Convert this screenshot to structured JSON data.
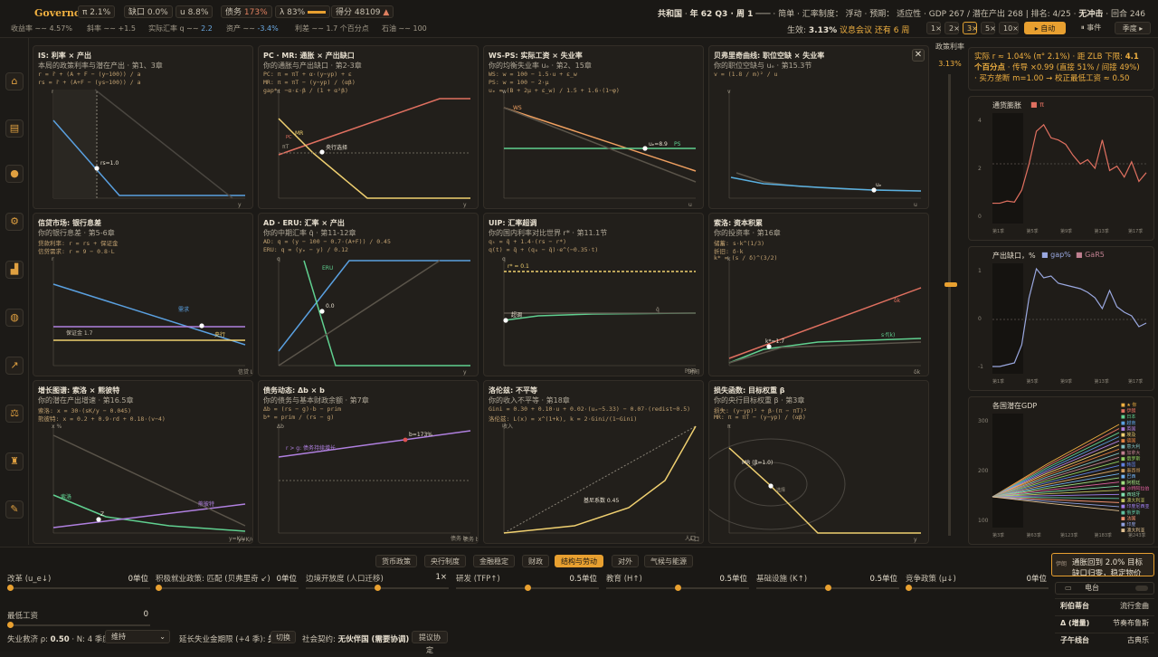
{
  "topbar": {
    "logo": "Governor",
    "ind_pi": "π 2.1%",
    "ind_gap": "缺口 0.0%",
    "ind_u": "u 8.8%",
    "ind_debt_label": "债务",
    "ind_debt": "173%",
    "ind_lambda": "λ 83%",
    "ind_score_label": "得分",
    "ind_score": "48109",
    "spark_yield_label": "收益率",
    "spark_yield": "4.57%",
    "spark_slope_label": "斜率",
    "spark_slope": "+1.5",
    "spark_q_label": "实际汇率 q",
    "spark_q": "2.2",
    "spark_asset_label": "资产",
    "spark_asset": "-3.4%",
    "spark_spread_label": "利差",
    "spark_spread": "1.7 个百分点",
    "spark_oil_label": "石油",
    "spark_oil": "100",
    "republic": "共和国",
    "date": "年 62 Q3 · 周 1",
    "mode": "简单",
    "fx_label": "汇率制度：",
    "fx": "浮动",
    "exp_label": "预期：",
    "exp": "适应性",
    "gdp": "GDP 267 / 潜在产出 268",
    "rank": "排名: 4/25",
    "shock": "无冲击",
    "round": "回合 246",
    "effective_label": "生效:",
    "effective": "3.13%",
    "meeting": "议息会议 还有 6 周",
    "speeds": [
      "1×",
      "2×",
      "3×",
      "5×",
      "10×"
    ],
    "auto": "自动",
    "events": "事件",
    "season": "季度"
  },
  "nav": [
    "bank",
    "ledger",
    "coins",
    "factory",
    "chart",
    "globe",
    "trend",
    "scale",
    "worker",
    "doc"
  ],
  "panels": [
    {
      "title": "IS: 利率 × 产出",
      "sub": "本局的政策利率与潜在产出 · 第1、3章",
      "eqs": [
        "r = r̄ + (A + F − (y−100)) / a",
        "rs = r̄ + (A+F − (ys−100)) / a"
      ],
      "labels": [
        "r",
        "y",
        "rs=1.0"
      ]
    },
    {
      "title": "PC · MR: 通胀 × 产出缺口",
      "sub": "你的通胀与产出缺口 · 第2-3章",
      "eqs": [
        "PC: π = πT + α·(y−yp) + ε",
        "MR: π = πT − (y−yp) / (αβ)",
        "gap*: −α·ε·β / (1 + α²β)"
      ],
      "labels": [
        "π",
        "y",
        "MR",
        "πT",
        "央行选择",
        "PC"
      ]
    },
    {
      "title": "WS-PS: 实际工资 × 失业率",
      "sub": "你的均衡失业率 uₑ · 第2、15章",
      "eqs": [
        "WS: w = 100 − 1.5·u + ε_w",
        "PS: w = 100 − 2·μ",
        "uₑ = (B + 2μ + ε_w) / 1.5 + 1.6·(1−φ)"
      ],
      "labels": [
        "w",
        "u",
        "WS",
        "uₑ=8.9",
        "PS"
      ]
    },
    {
      "title": "贝弗里奇曲线: 职位空缺 × 失业率",
      "sub": "你的职位空缺与 uₑ · 第15.3节",
      "eqs": [
        "v = (1.8 / m)² / u"
      ],
      "labels": [
        "v",
        "u",
        "uₑ"
      ]
    },
    {
      "title": "信贷市场: 银行息差",
      "sub": "你的银行息差 · 第5-6章",
      "eqs": [
        "贷款利率: r = rs + 保证金",
        "信贷需求: r = 9 − 0.8·L"
      ],
      "labels": [
        "r",
        "信贷 L",
        "需求",
        "央行",
        "保证金 1.7"
      ]
    },
    {
      "title": "AD · ERU: 汇率 × 产出",
      "sub": "你的中期汇率 q̄ · 第11-12章",
      "eqs": [
        "AD: q = (y − 100 − 0.7·(A+F)) / 0.45",
        "ERU: q = (yₑ − y) / 0.12"
      ],
      "labels": [
        "q",
        "y",
        "ERU",
        "0.0"
      ]
    },
    {
      "title": "UIP: 汇率超调",
      "sub": "你的国内利率对比世界 r* · 第11.1节",
      "eqs": [
        "qₜ = q̄ + 1.4·(rs − r*)",
        "q(t) = q̄ + (q₀ − q̄)·e^(−0.35·t)"
      ],
      "labels": [
        "q",
        "时间",
        "r* = 0.1",
        "超调",
        "q̄"
      ]
    },
    {
      "title": "索洛: 资本积累",
      "sub": "你的投资率 · 第16章",
      "eqs": [
        "储蓄: s·k^(1/3)",
        "折旧: δ·k",
        "k* = (s / δ)^(3/2)"
      ],
      "labels": [
        "k",
        "δk",
        "s·f(k)",
        "k*=1.7"
      ]
    },
    {
      "title": "增长图谱: 索洛 × 熊彼特",
      "sub": "你的潜在产出增速 · 第16.5章",
      "eqs": [
        "索洛: x = 30·(sK/y − 0.045)",
        "熊彼特: x = 0.2 + 0.9·rd + 0.18·(v−4)"
      ],
      "labels": [
        "x %",
        "y=K/y",
        "索洛",
        "熊彼特",
        "Z"
      ]
    },
    {
      "title": "债务动态: Δb × b",
      "sub": "你的债务与基本财政余额 · 第7章",
      "eqs": [
        "Δb = (rs − g)·b − prim",
        "b* = prim / (rs − g)"
      ],
      "labels": [
        "Δb",
        "债务 b",
        "r > g: 债务持续增长",
        "b=173%"
      ]
    },
    {
      "title": "洛伦兹: 不平等",
      "sub": "你的收入不平等 · 第18章",
      "eqs": [
        "Gini = 0.30 + 0.10·u + 0.02·(uₑ−5.33) − 0.07·(redist−0.5)",
        "洛伦兹: L(x) = x^(1+k), k = 2·Gini/(1−Gini)"
      ],
      "labels": [
        "收入",
        "人口",
        "基尼系数 0.45"
      ]
    },
    {
      "title": "损失函数: 目标权重 β",
      "sub": "你的央行目标权重 β · 第3章",
      "eqs": [
        "损失: (y−yp)² + β·(π − πT)²",
        "MR: π = πT − (y−yp) / (αβ)"
      ],
      "labels": [
        "π",
        "y",
        "MR (β=1.0)",
        "选择"
      ]
    }
  ],
  "ratebar": {
    "label": "政策利率",
    "value": "3.13%",
    "level": 0.55
  },
  "rside": {
    "line1_a": "实际 r ≈ 1.04% (π° 2.1%)",
    "line1_b": "· 距 ZLB 下限:",
    "line1_c": "4.1",
    "line1_d": "个百分点",
    "line2_a": "· 传导 ×0.99 (直接 51% / 间接 49%)",
    "line3_a": "· 买方垄断 m=1.00 → 校正最低工资 ≈ 0.50",
    "chart1": {
      "title": "通货膨胀",
      "legend": "π",
      "ticks": [
        "4",
        "2",
        "0"
      ],
      "xt": [
        "第1季",
        "第5季",
        "第9季",
        "第13季",
        "第17季"
      ]
    },
    "chart2": {
      "title": "产出缺口，%",
      "legend1": "gap%",
      "legend2": "GaR5",
      "ticks": [
        "1",
        "0",
        "-1"
      ],
      "xt": [
        "第1季",
        "第5季",
        "第9季",
        "第13季",
        "第17季"
      ]
    },
    "chart3": {
      "title": "各国潜在GDP",
      "ticks": [
        "300",
        "200",
        "100"
      ],
      "xt": [
        "第3季",
        "第63季",
        "第123季",
        "第183季",
        "第243季"
      ],
      "countries": [
        "★ 你",
        "伊朗",
        "日本",
        "越南",
        "英国",
        "埃及",
        "德国",
        "意大利",
        "加拿大",
        "俄罗斯",
        "韩国",
        "墨西哥",
        "巴西",
        "阿根廷",
        "沙特阿拉伯",
        "西班牙",
        "澳大利亚",
        "印度尼西亚",
        "俄罗斯",
        "法国",
        "印度",
        "澳大利亚"
      ]
    }
  },
  "tabs": [
    "货币政策",
    "央行制度",
    "金融稳定",
    "财政",
    "结构与劳动",
    "对外",
    "气候与能源"
  ],
  "sliders": [
    {
      "label": "改革 (u_e↓)",
      "value": "0单位",
      "pos": 0.0
    },
    {
      "label": "积极就业政策: 匹配 (贝弗里奇 ↙)",
      "value": "0单位",
      "pos": 0.0
    },
    {
      "label": "边境开放度 (人口迁移)",
      "value": "1×",
      "pos": 0.5
    },
    {
      "label": "研发 (TFP↑)",
      "value": "0.5单位",
      "pos": 0.5
    },
    {
      "label": "教育 (H↑)",
      "value": "0.5单位",
      "pos": 0.5
    },
    {
      "label": "基础设施 (K↑)",
      "value": "0.5单位",
      "pos": 0.5
    },
    {
      "label": "竞争政策 (μ↓)",
      "value": "0单位",
      "pos": 0.0
    },
    {
      "label": "最低工资",
      "value": "0",
      "pos": 0.0
    }
  ],
  "bottomrow": {
    "ins_label": "失业救济 ρ:",
    "ins_val": "0.50",
    "n_label": "N: 4 季度",
    "sel": "维持",
    "ext_label": "延长失业金期限 (+4 季):",
    "ext_val": "关",
    "switch": "切换",
    "pact_label": "社会契约:",
    "pact_val": "无伙伴国 (需要协调)",
    "propose": "提议协定"
  },
  "news": {
    "tag": "伊朗",
    "text": "通胀回到 2.0% 目标",
    "text2": "缺口归零，稳定物价",
    "radio": "电台",
    "rows": [
      [
        "利伯蒂台",
        "流行金曲"
      ],
      [
        "Δ (增量)",
        "节奏布鲁斯"
      ],
      [
        "子午线台",
        "古典乐"
      ]
    ]
  }
}
